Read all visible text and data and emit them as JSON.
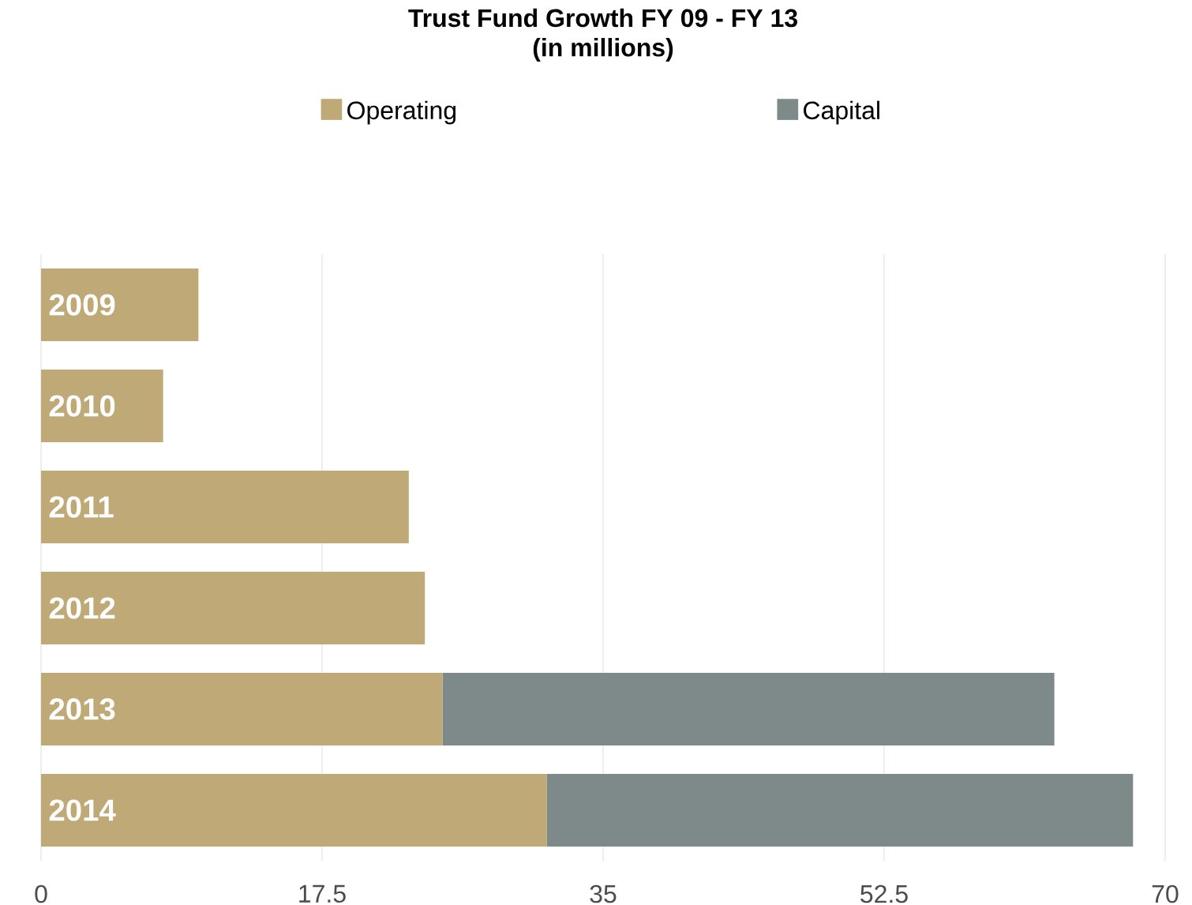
{
  "chart_data": {
    "type": "bar",
    "orientation": "horizontal",
    "stacked": true,
    "title": "Trust Fund Growth FY 09 - FY 13",
    "subtitle": "(in millions)",
    "categories": [
      "2009",
      "2010",
      "2011",
      "2012",
      "2013",
      "2014"
    ],
    "series": [
      {
        "name": "Operating",
        "color": "#bfa977",
        "values": [
          9.8,
          7.6,
          22.9,
          23.9,
          25.0,
          31.5
        ]
      },
      {
        "name": "Capital",
        "color": "#7e8989",
        "values": [
          null,
          null,
          null,
          null,
          38.1,
          36.5
        ]
      }
    ],
    "xlim": [
      0,
      70
    ],
    "xticks": [
      0,
      17.5,
      35,
      52.5,
      70
    ],
    "grid": "x",
    "legend": "top"
  }
}
